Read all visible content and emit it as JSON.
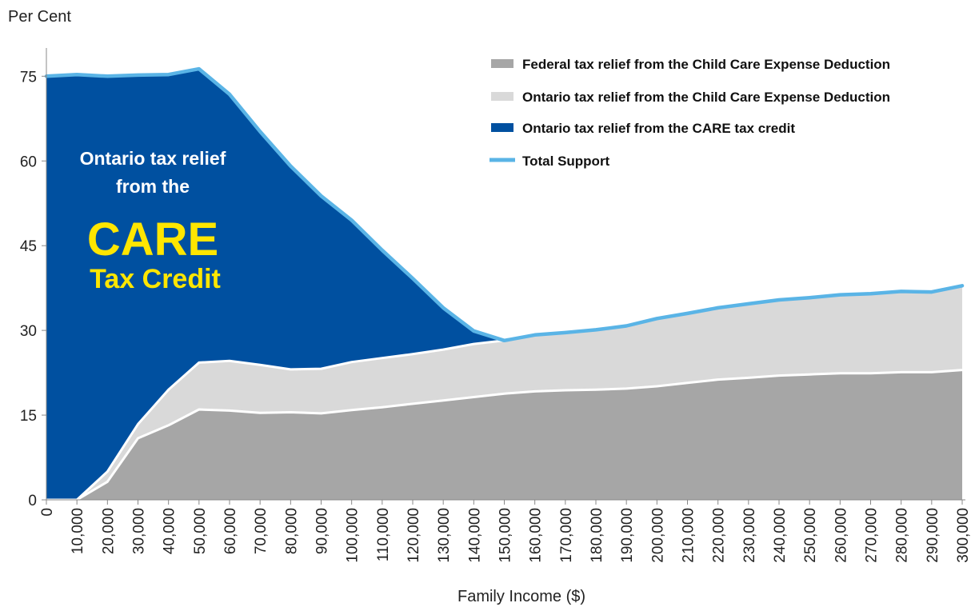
{
  "chart_data": {
    "type": "area",
    "ylabel": "Per Cent",
    "xlabel": "Family Income ($)",
    "ylim": [
      0,
      80
    ],
    "yticks": [
      "0",
      "15",
      "30",
      "45",
      "60",
      "75"
    ],
    "ytick_values": [
      0,
      15,
      30,
      45,
      60,
      75
    ],
    "x": [
      0,
      10000,
      20000,
      30000,
      40000,
      50000,
      60000,
      70000,
      80000,
      90000,
      100000,
      110000,
      120000,
      130000,
      140000,
      150000,
      160000,
      170000,
      180000,
      190000,
      200000,
      210000,
      220000,
      230000,
      240000,
      250000,
      260000,
      270000,
      280000,
      290000,
      300000
    ],
    "xtick_labels": [
      "0",
      "10,000",
      "20,000",
      "30,000",
      "40,000",
      "50,000",
      "60,000",
      "70,000",
      "80,000",
      "90,000",
      "100,000",
      "110,000",
      "120,000",
      "130,000",
      "140,000",
      "150,000",
      "160,000",
      "170,000",
      "180,000",
      "190,000",
      "200,000",
      "210,000",
      "220,000",
      "230,000",
      "240,000",
      "250,000",
      "260,000",
      "270,000",
      "280,000",
      "290,000",
      "300,000"
    ],
    "stacked": true,
    "series": [
      {
        "name": "Federal tax relief from the Child Care Expense Deduction",
        "color": "#a6a6a6",
        "values": [
          0,
          0,
          3.2,
          10.9,
          13.2,
          16.0,
          15.8,
          15.4,
          15.5,
          15.3,
          15.9,
          16.4,
          17.0,
          17.6,
          18.2,
          18.8,
          19.2,
          19.4,
          19.5,
          19.7,
          20.1,
          20.7,
          21.3,
          21.6,
          22.0,
          22.2,
          22.4,
          22.4,
          22.6,
          22.6,
          23.0
        ]
      },
      {
        "name": "Ontario tax relief from the Child Care Expense Deduction",
        "color": "#d9d9d9",
        "values": [
          0,
          0,
          1.8,
          2.5,
          6.3,
          8.3,
          8.8,
          8.5,
          7.6,
          7.9,
          8.5,
          8.7,
          8.8,
          9.0,
          9.4,
          9.4,
          10.0,
          10.2,
          10.6,
          11.1,
          12.0,
          12.3,
          12.7,
          13.1,
          13.4,
          13.6,
          13.9,
          14.1,
          14.3,
          14.2,
          14.9
        ]
      },
      {
        "name": "Ontario tax relief from the CARE tax credit",
        "color": "#0050a0",
        "values": [
          75.0,
          75.3,
          70.0,
          61.8,
          55.8,
          52.0,
          47.2,
          41.3,
          36.0,
          30.6,
          25.1,
          19.1,
          13.4,
          7.4,
          2.3,
          0,
          0,
          0,
          0,
          0,
          0,
          0,
          0,
          0,
          0,
          0,
          0,
          0,
          0,
          0,
          0
        ]
      }
    ],
    "line_series": {
      "name": "Total Support",
      "color": "#5ab4e6",
      "values": [
        75.0,
        75.3,
        75.0,
        75.2,
        75.3,
        76.3,
        71.8,
        65.2,
        59.1,
        53.8,
        49.5,
        44.2,
        39.2,
        34.0,
        29.9,
        28.2,
        29.2,
        29.6,
        30.1,
        30.8,
        32.1,
        33.0,
        34.0,
        34.7,
        35.4,
        35.8,
        36.3,
        36.5,
        36.9,
        36.8,
        37.9
      ]
    },
    "legend": {
      "items": [
        "Federal tax relief from the Child Care Expense Deduction",
        "Ontario tax relief from the Child Care Expense Deduction",
        "Ontario tax relief from the CARE tax credit",
        "Total Support"
      ],
      "placement": "top-right"
    },
    "annotation": {
      "line1": "Ontario tax relief",
      "line2": "from the",
      "line3": "CARE",
      "line4": "Tax Credit",
      "highlight_color": "#ffe600"
    },
    "grid": false
  }
}
